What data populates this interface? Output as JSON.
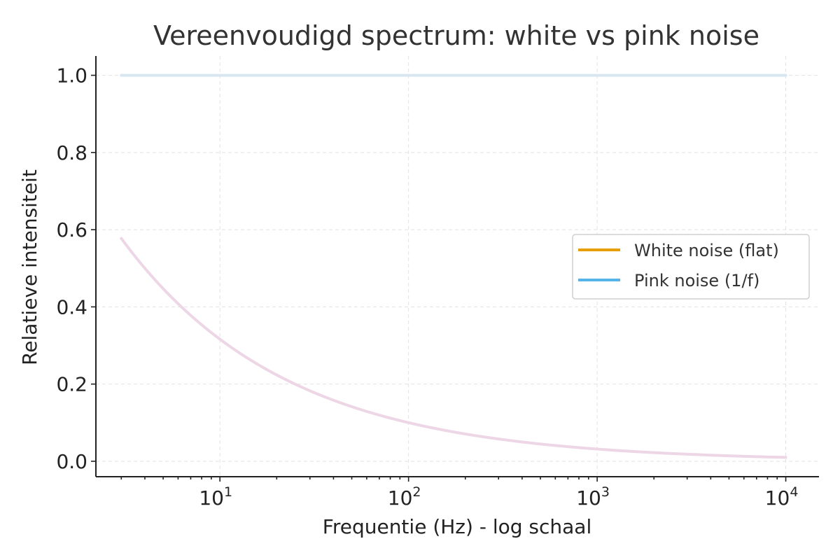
{
  "chart_data": {
    "type": "line",
    "title": "Vereenvoudigd spectrum: white vs pink noise",
    "xlabel": "Frequentie (Hz) - log schaal",
    "ylabel": "Relatieve intensiteit",
    "xscale": "log",
    "xlim": [
      2.2,
      15000
    ],
    "ylim": [
      -0.04,
      1.05
    ],
    "x_ticks": [
      10,
      100,
      1000,
      10000
    ],
    "x_tick_labels": [
      {
        "base": "10",
        "exp": "1"
      },
      {
        "base": "10",
        "exp": "2"
      },
      {
        "base": "10",
        "exp": "3"
      },
      {
        "base": "10",
        "exp": "4"
      }
    ],
    "y_ticks": [
      0.0,
      0.2,
      0.4,
      0.6,
      0.8,
      1.0
    ],
    "y_tick_labels": [
      "0.0",
      "0.2",
      "0.4",
      "0.6",
      "0.8",
      "1.0"
    ],
    "grid": true,
    "legend_position": "center-right",
    "series": [
      {
        "name": "White noise (flat)",
        "color": "#E69F00",
        "plotted_color": "#D8E6F2",
        "formula": "flat",
        "x": [
          3,
          10,
          100,
          1000,
          10000
        ],
        "y": [
          1.0,
          1.0,
          1.0,
          1.0,
          1.0
        ]
      },
      {
        "name": "Pink noise (1/f)",
        "color": "#56B4E9",
        "plotted_color": "#EDD6E5",
        "formula": "1/sqrt(f)",
        "x": [
          3,
          10,
          100,
          1000,
          10000
        ],
        "y": [
          0.57,
          0.32,
          0.1,
          0.03,
          0.01
        ]
      }
    ]
  }
}
